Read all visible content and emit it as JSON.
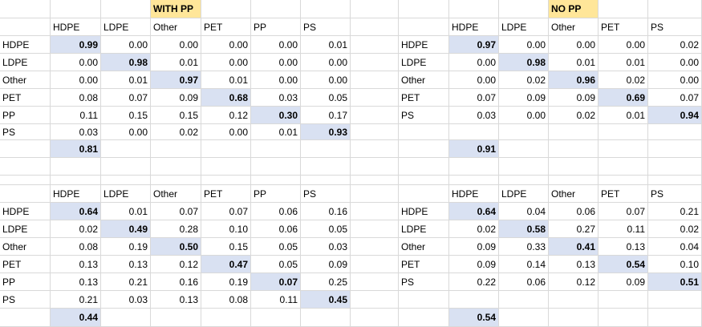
{
  "sheet": {
    "titles": [
      "WITH PP",
      "NO PP"
    ],
    "headers_6": [
      "HDPE",
      "LDPE",
      "Other",
      "PET",
      "PP",
      "PS"
    ],
    "headers_5": [
      "HDPE",
      "LDPE",
      "Other",
      "PET",
      "PS"
    ],
    "matrices": [
      {
        "name": "with-pp-top",
        "title_index": 0,
        "cols": [
          "HDPE",
          "LDPE",
          "Other",
          "PET",
          "PP",
          "PS"
        ],
        "rows": [
          {
            "label": "HDPE",
            "values": [
              "0.99",
              "0.00",
              "0.00",
              "0.00",
              "0.00",
              "0.01"
            ]
          },
          {
            "label": "LDPE",
            "values": [
              "0.00",
              "0.98",
              "0.01",
              "0.00",
              "0.00",
              "0.00"
            ]
          },
          {
            "label": "Other",
            "values": [
              "0.00",
              "0.01",
              "0.97",
              "0.01",
              "0.00",
              "0.00"
            ]
          },
          {
            "label": "PET",
            "values": [
              "0.08",
              "0.07",
              "0.09",
              "0.68",
              "0.03",
              "0.05"
            ]
          },
          {
            "label": "PP",
            "values": [
              "0.11",
              "0.15",
              "0.15",
              "0.12",
              "0.30",
              "0.17"
            ]
          },
          {
            "label": "PS",
            "values": [
              "0.03",
              "0.00",
              "0.02",
              "0.00",
              "0.01",
              "0.93"
            ]
          }
        ],
        "score": "0.81"
      },
      {
        "name": "no-pp-top",
        "title_index": 1,
        "cols": [
          "HDPE",
          "LDPE",
          "Other",
          "PET",
          "PS"
        ],
        "rows": [
          {
            "label": "HDPE",
            "values": [
              "0.97",
              "0.00",
              "0.00",
              "0.00",
              "0.02"
            ]
          },
          {
            "label": "LDPE",
            "values": [
              "0.00",
              "0.98",
              "0.01",
              "0.01",
              "0.00"
            ]
          },
          {
            "label": "Other",
            "values": [
              "0.00",
              "0.02",
              "0.96",
              "0.02",
              "0.00"
            ]
          },
          {
            "label": "PET",
            "values": [
              "0.07",
              "0.09",
              "0.09",
              "0.69",
              "0.07"
            ]
          },
          {
            "label": "PS",
            "values": [
              "0.03",
              "0.00",
              "0.02",
              "0.01",
              "0.94"
            ]
          }
        ],
        "score": "0.91"
      },
      {
        "name": "with-pp-bottom",
        "cols": [
          "HDPE",
          "LDPE",
          "Other",
          "PET",
          "PP",
          "PS"
        ],
        "rows": [
          {
            "label": "HDPE",
            "values": [
              "0.64",
              "0.01",
              "0.07",
              "0.07",
              "0.06",
              "0.16"
            ]
          },
          {
            "label": "LDPE",
            "values": [
              "0.02",
              "0.49",
              "0.28",
              "0.10",
              "0.06",
              "0.05"
            ]
          },
          {
            "label": "Other",
            "values": [
              "0.08",
              "0.19",
              "0.50",
              "0.15",
              "0.05",
              "0.03"
            ]
          },
          {
            "label": "PET",
            "values": [
              "0.13",
              "0.13",
              "0.12",
              "0.47",
              "0.05",
              "0.09"
            ]
          },
          {
            "label": "PP",
            "values": [
              "0.13",
              "0.21",
              "0.16",
              "0.19",
              "0.07",
              "0.25"
            ]
          },
          {
            "label": "PS",
            "values": [
              "0.21",
              "0.03",
              "0.13",
              "0.08",
              "0.11",
              "0.45"
            ]
          }
        ],
        "score": "0.44"
      },
      {
        "name": "no-pp-bottom",
        "cols": [
          "HDPE",
          "LDPE",
          "Other",
          "PET",
          "PS"
        ],
        "rows": [
          {
            "label": "HDPE",
            "values": [
              "0.64",
              "0.04",
              "0.06",
              "0.07",
              "0.21"
            ]
          },
          {
            "label": "LDPE",
            "values": [
              "0.02",
              "0.58",
              "0.27",
              "0.11",
              "0.02"
            ]
          },
          {
            "label": "Other",
            "values": [
              "0.09",
              "0.33",
              "0.41",
              "0.13",
              "0.04"
            ]
          },
          {
            "label": "PET",
            "values": [
              "0.09",
              "0.14",
              "0.13",
              "0.54",
              "0.10"
            ]
          },
          {
            "label": "PS",
            "values": [
              "0.22",
              "0.06",
              "0.12",
              "0.09",
              "0.51"
            ]
          }
        ],
        "score": "0.54"
      }
    ]
  },
  "colors": {
    "diagonal_fill": "#d9e1f2",
    "title_fill": "#ffe699",
    "gridline": "#d9d9d9"
  }
}
